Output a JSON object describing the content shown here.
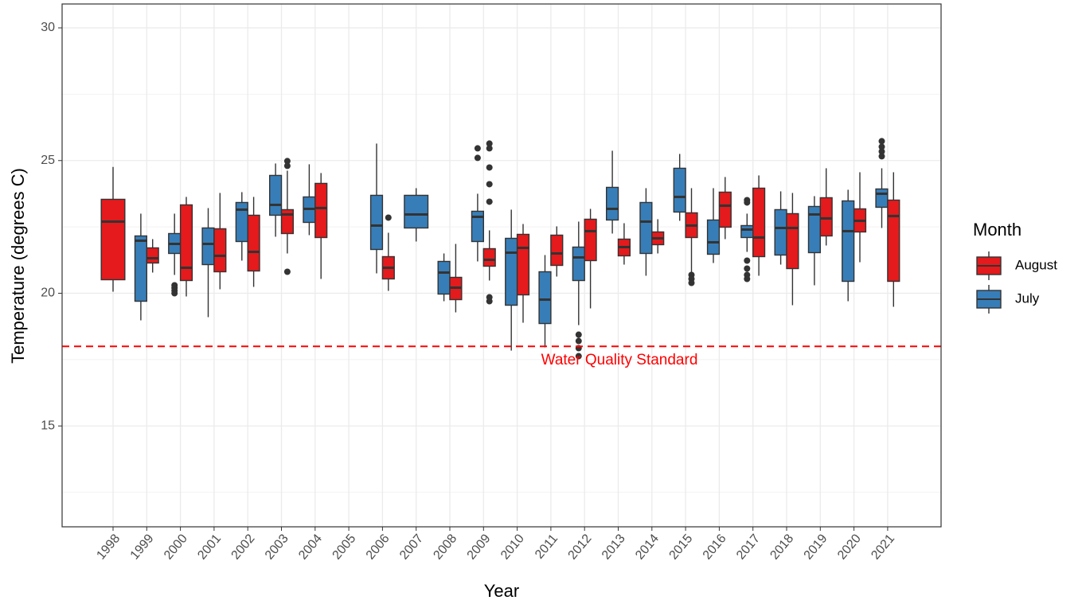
{
  "chart_data": {
    "type": "boxplot",
    "x_label": "Year",
    "y_label": "Temperature (degrees C)",
    "categories": [
      "1998",
      "1999",
      "2000",
      "2001",
      "2002",
      "2003",
      "2004",
      "2005",
      "2006",
      "2007",
      "2008",
      "2009",
      "2010",
      "2011",
      "2012",
      "2013",
      "2014",
      "2015",
      "2016",
      "2017",
      "2018",
      "2019",
      "2020",
      "2021"
    ],
    "ylim": [
      11.2,
      30.9
    ],
    "yticks": [
      15,
      20,
      25,
      30
    ],
    "grid": true,
    "legend_title": "Month",
    "reference_line": {
      "value": 18,
      "label": "Water Quality Standard",
      "color": "#ff0000"
    },
    "series": [
      {
        "name": "July",
        "color": "#377eb8",
        "whisker_low": [
          null,
          18.98,
          20.69,
          19.1,
          21.23,
          22.13,
          22.19,
          null,
          20.75,
          21.95,
          19.7,
          21.2,
          17.84,
          17.96,
          18.8,
          22.25,
          20.66,
          22.73,
          21.14,
          21.56,
          21.08,
          20.3,
          19.7,
          22.46
        ],
        "q1": [
          null,
          19.7,
          21.5,
          21.08,
          21.95,
          22.94,
          22.67,
          null,
          21.65,
          22.46,
          19.97,
          21.95,
          19.55,
          18.86,
          20.48,
          22.76,
          21.5,
          23.06,
          21.47,
          22.1,
          21.44,
          21.53,
          20.45,
          23.24
        ],
        "median": [
          null,
          21.98,
          21.86,
          21.86,
          23.15,
          23.33,
          23.18,
          null,
          22.55,
          22.97,
          20.78,
          22.88,
          21.53,
          19.76,
          21.35,
          23.18,
          22.7,
          23.63,
          21.92,
          22.4,
          22.46,
          22.97,
          22.34,
          23.75
        ],
        "q3": [
          null,
          22.16,
          22.25,
          22.46,
          23.42,
          24.44,
          23.63,
          null,
          23.69,
          23.69,
          21.2,
          23.09,
          22.07,
          20.81,
          21.74,
          23.99,
          23.42,
          24.71,
          22.76,
          22.55,
          23.15,
          23.27,
          23.48,
          23.93
        ],
        "whisker_high": [
          null,
          23.0,
          23.0,
          23.21,
          23.81,
          24.89,
          24.86,
          null,
          25.64,
          23.96,
          21.5,
          23.75,
          23.15,
          21.44,
          22.7,
          25.37,
          23.96,
          25.25,
          23.96,
          23.0,
          23.84,
          23.66,
          23.9,
          24.71
        ],
        "outliers": [
          [],
          [],
          [
            20.3,
            20.2,
            20.1,
            20.0
          ],
          [],
          [],
          [],
          [],
          [],
          [],
          [],
          [],
          [
            25.46,
            25.1
          ],
          [],
          [],
          [
            18.44,
            18.2,
            17.93,
            17.63
          ],
          [],
          [],
          [],
          [],
          [
            23.51,
            23.42,
            21.23,
            20.93,
            20.69,
            20.54
          ],
          [],
          [],
          [],
          [
            25.73,
            25.52,
            25.34,
            25.16
          ]
        ]
      },
      {
        "name": "August",
        "color": "#e41a1c",
        "whisker_low": [
          20.06,
          20.78,
          19.88,
          20.15,
          20.24,
          21.5,
          20.54,
          null,
          20.09,
          null,
          19.28,
          20.48,
          18.89,
          20.63,
          19.43,
          21.08,
          21.5,
          20.78,
          22.04,
          20.66,
          19.55,
          21.8,
          21.17,
          19.49
        ],
        "q1": [
          20.51,
          21.14,
          20.48,
          20.81,
          20.84,
          22.25,
          22.1,
          null,
          20.54,
          null,
          19.76,
          21.02,
          19.94,
          21.05,
          21.23,
          21.41,
          21.83,
          22.1,
          22.49,
          21.38,
          20.93,
          22.16,
          22.31,
          20.45
        ],
        "median": [
          22.7,
          21.32,
          20.96,
          21.41,
          21.56,
          22.97,
          23.21,
          null,
          20.96,
          null,
          20.21,
          21.26,
          21.71,
          21.5,
          22.34,
          21.74,
          22.07,
          22.55,
          23.3,
          22.1,
          22.46,
          22.82,
          22.73,
          22.91
        ],
        "q3": [
          23.54,
          21.71,
          23.33,
          22.43,
          22.94,
          23.15,
          24.14,
          null,
          21.38,
          null,
          20.6,
          21.68,
          22.22,
          22.19,
          22.79,
          22.04,
          22.31,
          23.03,
          23.81,
          23.96,
          23.0,
          23.6,
          23.18,
          23.51
        ],
        "whisker_high": [
          24.76,
          22.04,
          23.63,
          23.78,
          23.63,
          24.62,
          24.53,
          null,
          22.28,
          null,
          21.86,
          22.37,
          22.61,
          22.52,
          23.18,
          22.64,
          22.79,
          23.96,
          24.38,
          24.44,
          23.78,
          24.71,
          24.56,
          24.56
        ],
        "outliers": [
          [],
          [],
          [],
          [],
          [],
          [
            24.98,
            24.8,
            20.81
          ],
          [],
          [],
          [
            22.85
          ],
          [],
          [],
          [
            25.64,
            25.46,
            24.74,
            24.11,
            23.45,
            19.85,
            19.7
          ],
          [],
          [],
          [],
          [],
          [],
          [
            20.69,
            20.54,
            20.39
          ],
          [],
          [],
          [],
          [],
          [],
          []
        ]
      }
    ]
  }
}
